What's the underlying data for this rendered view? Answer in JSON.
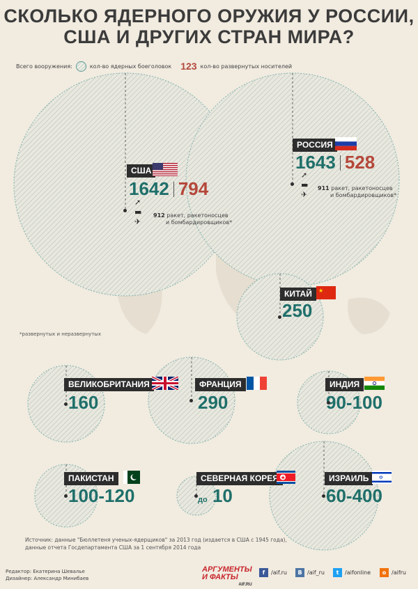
{
  "title": {
    "line1": "СКОЛЬКО ЯДЕРНОГО ОРУЖИЯ У РОССИИ,",
    "line2": "США И ДРУГИХ СТРАН МИРА?"
  },
  "legend": {
    "prefix": "Всего вооружения:",
    "warheads": "кол-во ядерных боеголовок",
    "sample_number": "123",
    "carriers": "кол-во развернутых носителей"
  },
  "countries": {
    "usa": {
      "name": "США",
      "warheads": "1642",
      "carriers": "794",
      "carriers_count": "912",
      "carriers_text_1": "ракет, ракетоносцев",
      "carriers_text_2": "и бомбардировщиков*"
    },
    "russia": {
      "name": "РОССИЯ",
      "warheads": "1643",
      "carriers": "528",
      "carriers_count": "911",
      "carriers_text_1": "ракет, ракетоносцев",
      "carriers_text_2": "и бомбардировщиков*"
    },
    "china": {
      "name": "КИТАЙ",
      "warheads": "250"
    },
    "uk": {
      "name": "ВЕЛИКОБРИТАНИЯ",
      "warheads": "160"
    },
    "france": {
      "name": "ФРАНЦИЯ",
      "warheads": "290"
    },
    "india": {
      "name": "ИНДИЯ",
      "warheads": "90-100"
    },
    "pakistan": {
      "name": "ПАКИСТАН",
      "warheads": "100-120"
    },
    "north_korea": {
      "name": "СЕВЕРНАЯ КОРЕЯ",
      "prefix": "до",
      "warheads": "10"
    },
    "israel": {
      "name": "ИЗРАИЛЬ",
      "warheads": "60-400"
    }
  },
  "footnote": "*развернутых и неразвернутых",
  "source": {
    "line1": "Источник: данные \"Бюллетеня ученых-ядерщиков\" за 2013 год (издается в США с 1945 года),",
    "line2": "данные отчета Госдепартамента США за 1 сентября 2014 года"
  },
  "credits": {
    "editor": "Редактор: Екатерина Шевалье",
    "designer": "Дизайнер: Александр Минибаев"
  },
  "logo": {
    "line1": "АРГУМЕНТЫ",
    "line2": "И ФАКТЫ",
    "site": "AIF.RU"
  },
  "social": {
    "facebook": "/aif.ru",
    "vk": "/aif_ru",
    "twitter": "/aifonline",
    "ok": "/aifru"
  },
  "colors": {
    "teal": "#1f6f6a",
    "red": "#b4473a",
    "label_bg": "#2d2d2d",
    "bg": "#f1ebe0"
  }
}
